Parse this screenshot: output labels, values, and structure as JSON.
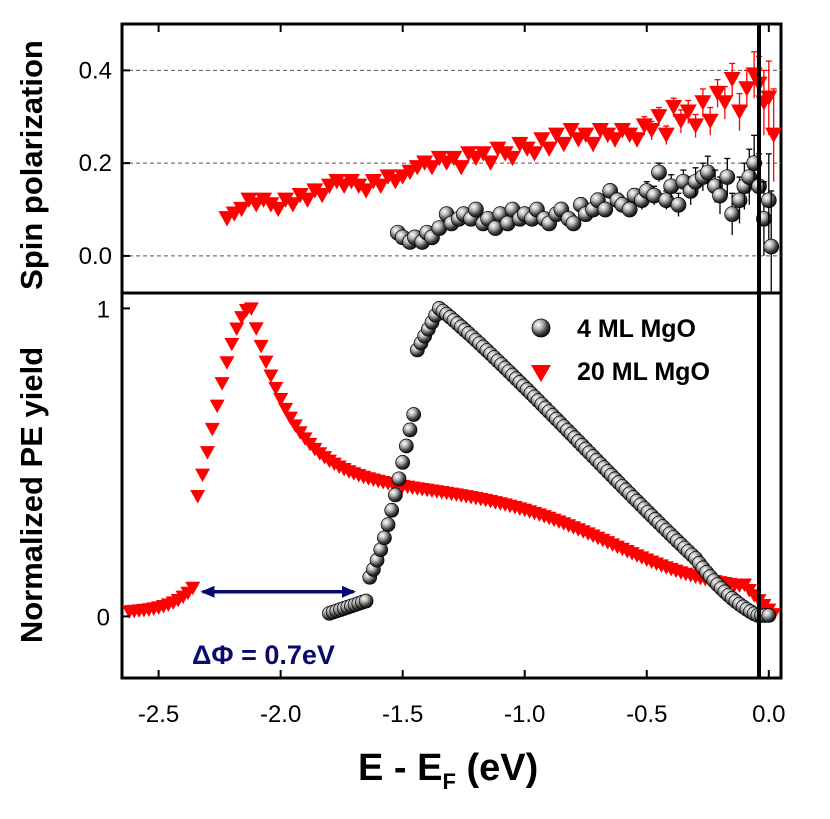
{
  "chart_data": [
    {
      "panel": "top",
      "type": "scatter",
      "ylabel": "Spin polarization",
      "xlim": [
        -2.65,
        0.05
      ],
      "ylim": [
        -0.08,
        0.5
      ],
      "yticks": [
        0.0,
        0.2,
        0.4
      ],
      "ytick_labels": [
        "0.0",
        "0.2",
        "0.4"
      ],
      "grid": "dashed horizontal at 0.0, 0.2, 0.4",
      "series": [
        {
          "name": "4 ML MgO",
          "marker": "sphere",
          "color": "#3a3a3a",
          "x": [
            -1.52,
            -1.5,
            -1.47,
            -1.45,
            -1.42,
            -1.4,
            -1.38,
            -1.35,
            -1.32,
            -1.3,
            -1.27,
            -1.25,
            -1.22,
            -1.2,
            -1.17,
            -1.15,
            -1.12,
            -1.1,
            -1.07,
            -1.05,
            -1.02,
            -1.0,
            -0.97,
            -0.95,
            -0.92,
            -0.9,
            -0.87,
            -0.85,
            -0.82,
            -0.8,
            -0.77,
            -0.75,
            -0.72,
            -0.7,
            -0.67,
            -0.65,
            -0.62,
            -0.6,
            -0.57,
            -0.55,
            -0.52,
            -0.5,
            -0.47,
            -0.45,
            -0.42,
            -0.4,
            -0.37,
            -0.35,
            -0.32,
            -0.3,
            -0.27,
            -0.25,
            -0.22,
            -0.2,
            -0.17,
            -0.15,
            -0.12,
            -0.1,
            -0.08,
            -0.06,
            -0.04,
            -0.02,
            0.0,
            0.01
          ],
          "y": [
            0.05,
            0.04,
            0.03,
            0.04,
            0.03,
            0.05,
            0.04,
            0.06,
            0.09,
            0.07,
            0.08,
            0.09,
            0.08,
            0.1,
            0.07,
            0.08,
            0.06,
            0.09,
            0.07,
            0.1,
            0.08,
            0.09,
            0.08,
            0.1,
            0.08,
            0.07,
            0.09,
            0.1,
            0.08,
            0.07,
            0.11,
            0.09,
            0.1,
            0.12,
            0.1,
            0.14,
            0.12,
            0.11,
            0.1,
            0.13,
            0.12,
            0.14,
            0.13,
            0.18,
            0.12,
            0.15,
            0.11,
            0.16,
            0.14,
            0.16,
            0.17,
            0.18,
            0.15,
            0.13,
            0.17,
            0.09,
            0.12,
            0.15,
            0.17,
            0.2,
            0.15,
            0.08,
            0.12,
            0.02
          ],
          "err": [
            0.01,
            0.01,
            0.01,
            0.01,
            0.01,
            0.01,
            0.01,
            0.01,
            0.01,
            0.01,
            0.01,
            0.01,
            0.01,
            0.01,
            0.01,
            0.01,
            0.01,
            0.01,
            0.01,
            0.01,
            0.01,
            0.01,
            0.01,
            0.01,
            0.01,
            0.01,
            0.01,
            0.01,
            0.01,
            0.01,
            0.015,
            0.015,
            0.015,
            0.015,
            0.015,
            0.015,
            0.015,
            0.015,
            0.015,
            0.015,
            0.02,
            0.02,
            0.02,
            0.02,
            0.02,
            0.025,
            0.025,
            0.025,
            0.03,
            0.03,
            0.03,
            0.035,
            0.035,
            0.04,
            0.04,
            0.045,
            0.05,
            0.05,
            0.06,
            0.06,
            0.07,
            0.08,
            0.1,
            0.12
          ]
        },
        {
          "name": "20 ML MgO",
          "marker": "triangle-down",
          "color": "#ff0000",
          "x": [
            -2.22,
            -2.19,
            -2.16,
            -2.13,
            -2.1,
            -2.07,
            -2.04,
            -2.01,
            -1.98,
            -1.95,
            -1.92,
            -1.89,
            -1.86,
            -1.83,
            -1.8,
            -1.77,
            -1.74,
            -1.71,
            -1.68,
            -1.65,
            -1.62,
            -1.59,
            -1.56,
            -1.53,
            -1.5,
            -1.47,
            -1.44,
            -1.41,
            -1.38,
            -1.35,
            -1.32,
            -1.29,
            -1.26,
            -1.23,
            -1.2,
            -1.17,
            -1.14,
            -1.11,
            -1.08,
            -1.05,
            -1.02,
            -0.99,
            -0.96,
            -0.93,
            -0.9,
            -0.87,
            -0.84,
            -0.81,
            -0.78,
            -0.75,
            -0.72,
            -0.69,
            -0.66,
            -0.63,
            -0.6,
            -0.57,
            -0.54,
            -0.51,
            -0.48,
            -0.45,
            -0.42,
            -0.39,
            -0.36,
            -0.33,
            -0.3,
            -0.27,
            -0.24,
            -0.21,
            -0.18,
            -0.15,
            -0.12,
            -0.09,
            -0.06,
            -0.04,
            -0.02,
            0.0,
            0.02
          ],
          "y": [
            0.08,
            0.09,
            0.1,
            0.12,
            0.11,
            0.12,
            0.11,
            0.1,
            0.12,
            0.11,
            0.13,
            0.12,
            0.14,
            0.13,
            0.15,
            0.16,
            0.15,
            0.16,
            0.15,
            0.14,
            0.16,
            0.15,
            0.17,
            0.16,
            0.17,
            0.18,
            0.19,
            0.2,
            0.19,
            0.21,
            0.2,
            0.21,
            0.19,
            0.22,
            0.21,
            0.22,
            0.2,
            0.23,
            0.22,
            0.21,
            0.24,
            0.23,
            0.22,
            0.25,
            0.23,
            0.26,
            0.24,
            0.27,
            0.25,
            0.26,
            0.24,
            0.27,
            0.26,
            0.25,
            0.27,
            0.26,
            0.25,
            0.28,
            0.27,
            0.3,
            0.26,
            0.32,
            0.29,
            0.31,
            0.28,
            0.33,
            0.29,
            0.35,
            0.33,
            0.38,
            0.31,
            0.36,
            0.39,
            0.37,
            0.33,
            0.34,
            0.26
          ],
          "err": [
            0.01,
            0.01,
            0.01,
            0.01,
            0.01,
            0.01,
            0.01,
            0.01,
            0.01,
            0.01,
            0.01,
            0.01,
            0.01,
            0.01,
            0.01,
            0.01,
            0.01,
            0.01,
            0.01,
            0.01,
            0.01,
            0.01,
            0.01,
            0.01,
            0.01,
            0.01,
            0.01,
            0.01,
            0.01,
            0.01,
            0.01,
            0.01,
            0.01,
            0.01,
            0.01,
            0.01,
            0.01,
            0.01,
            0.01,
            0.01,
            0.01,
            0.01,
            0.01,
            0.01,
            0.01,
            0.01,
            0.01,
            0.01,
            0.01,
            0.01,
            0.015,
            0.015,
            0.015,
            0.015,
            0.015,
            0.015,
            0.015,
            0.02,
            0.02,
            0.02,
            0.02,
            0.02,
            0.025,
            0.025,
            0.025,
            0.03,
            0.03,
            0.03,
            0.035,
            0.035,
            0.04,
            0.04,
            0.05,
            0.06,
            0.07,
            0.08,
            0.1
          ]
        }
      ]
    },
    {
      "panel": "bottom",
      "type": "scatter",
      "ylabel": "Normalized PE yield",
      "xlabel_main": "E - E",
      "xlabel_sub": "F",
      "xlabel_unit": " (eV)",
      "xlim": [
        -2.65,
        0.05
      ],
      "ylim": [
        -0.2,
        1.05
      ],
      "xticks": [
        -2.5,
        -2.0,
        -1.5,
        -1.0,
        -0.5,
        0.0
      ],
      "xtick_labels": [
        "-2.5",
        "-2.0",
        "-1.5",
        "-1.0",
        "-0.5",
        "0.0"
      ],
      "yticks": [
        0,
        1
      ],
      "ytick_labels": [
        "0",
        "1"
      ],
      "annotation": {
        "text": "ΔΦ = 0.7eV",
        "arrow_from_x": -2.32,
        "arrow_to_x": -1.7,
        "arrow_y": 0.08,
        "color": "#0a0a6e"
      },
      "legend": {
        "position": "top-right",
        "entries": [
          "4 ML MgO",
          "20 ML MgO"
        ]
      },
      "series": [
        {
          "name": "4 ML MgO",
          "marker": "sphere",
          "color": "#3a3a3a",
          "model": {
            "onset": -1.8,
            "peak_x": -1.35,
            "fall_end": 0.0,
            "rise_center": -1.5,
            "rise_width": 0.07
          },
          "x_start": -1.8,
          "x_end": 0.0,
          "x_step": 0.015
        },
        {
          "name": "20 ML MgO",
          "marker": "triangle-down",
          "color": "#ff0000",
          "model": {
            "onset": -2.62,
            "peak_x": -2.12,
            "shoulder_y": 0.42,
            "fall_end": 0.0
          },
          "x_start": -2.62,
          "x_end": 0.02,
          "x_step": 0.02
        }
      ]
    }
  ]
}
